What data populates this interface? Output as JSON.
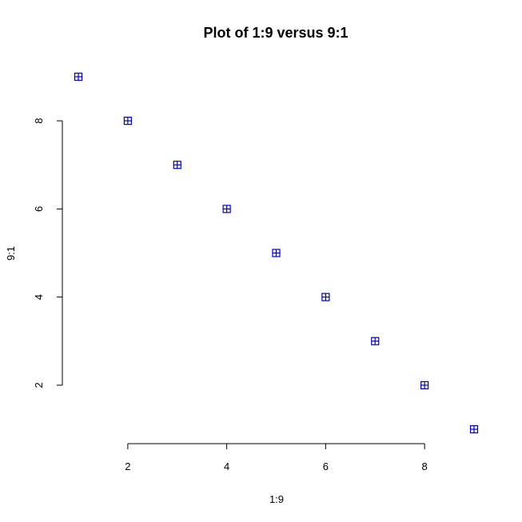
{
  "chart_data": {
    "type": "scatter",
    "title": "Plot of 1:9 versus 9:1",
    "xlabel": "1:9",
    "ylabel": "9:1",
    "x": [
      1,
      2,
      3,
      4,
      5,
      6,
      7,
      8,
      9
    ],
    "y": [
      9,
      8,
      7,
      6,
      5,
      4,
      3,
      2,
      1
    ],
    "xlim": [
      1,
      9
    ],
    "ylim": [
      1,
      9
    ],
    "xticks": [
      2,
      4,
      6,
      8
    ],
    "yticks": [
      2,
      4,
      6,
      8
    ],
    "grid": false,
    "marker": "boxed-plus",
    "point_color": "#0000cc"
  }
}
